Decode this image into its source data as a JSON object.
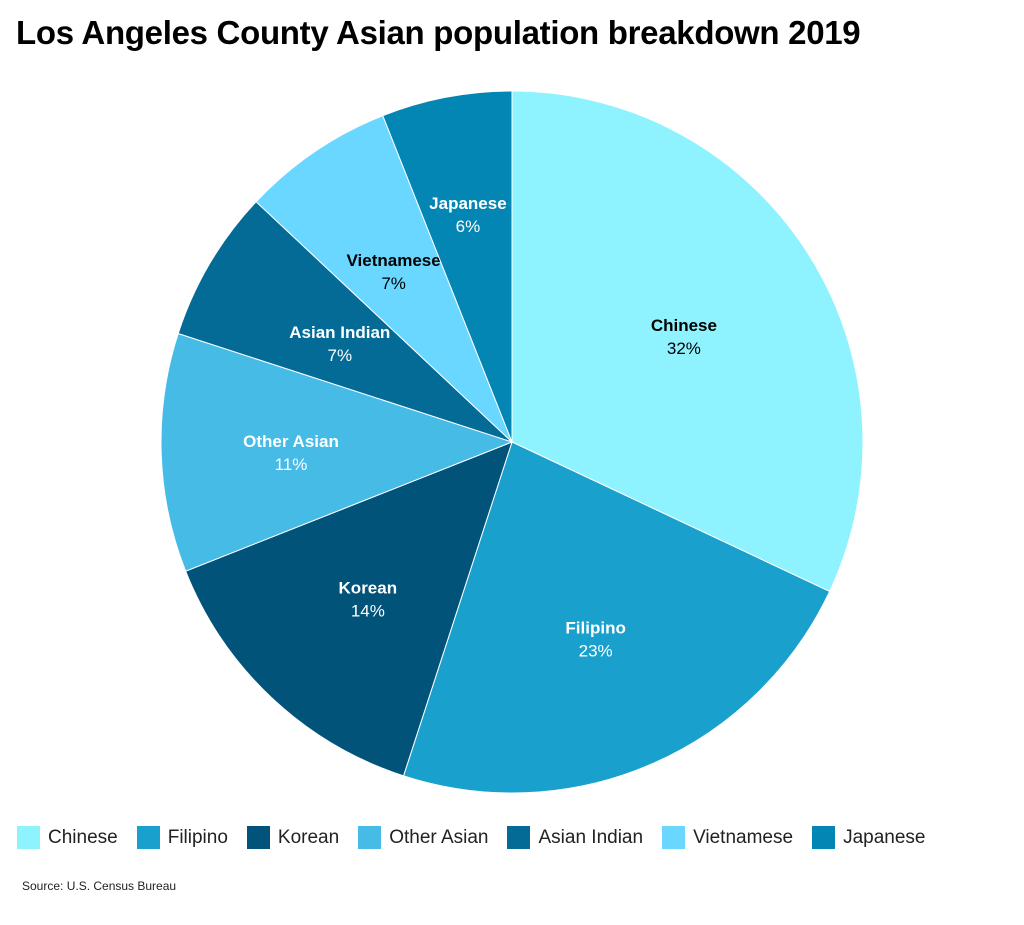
{
  "chart_data": {
    "type": "pie",
    "title": "Los Angeles County Asian population breakdown 2019",
    "source": "Source: U.S. Census Bureau",
    "legend_position": "bottom",
    "start_angle_deg": 0,
    "direction": "clockwise",
    "slices": [
      {
        "label": "Chinese",
        "value": 32,
        "display": "32%",
        "color": "#8ef3ff",
        "text_color": "#000000"
      },
      {
        "label": "Filipino",
        "value": 23,
        "display": "23%",
        "color": "#1aa0cc",
        "text_color": "#ffffff"
      },
      {
        "label": "Korean",
        "value": 14,
        "display": "14%",
        "color": "#02537a",
        "text_color": "#ffffff"
      },
      {
        "label": "Other Asian",
        "value": 11,
        "display": "11%",
        "color": "#46bbe6",
        "text_color": "#ffffff"
      },
      {
        "label": "Asian Indian",
        "value": 7,
        "display": "7%",
        "color": "#036b96",
        "text_color": "#ffffff"
      },
      {
        "label": "Vietnamese",
        "value": 7,
        "display": "7%",
        "color": "#69d7ff",
        "text_color": "#000000"
      },
      {
        "label": "Japanese",
        "value": 6,
        "display": "6%",
        "color": "#0386b3",
        "text_color": "#ffffff"
      }
    ]
  }
}
